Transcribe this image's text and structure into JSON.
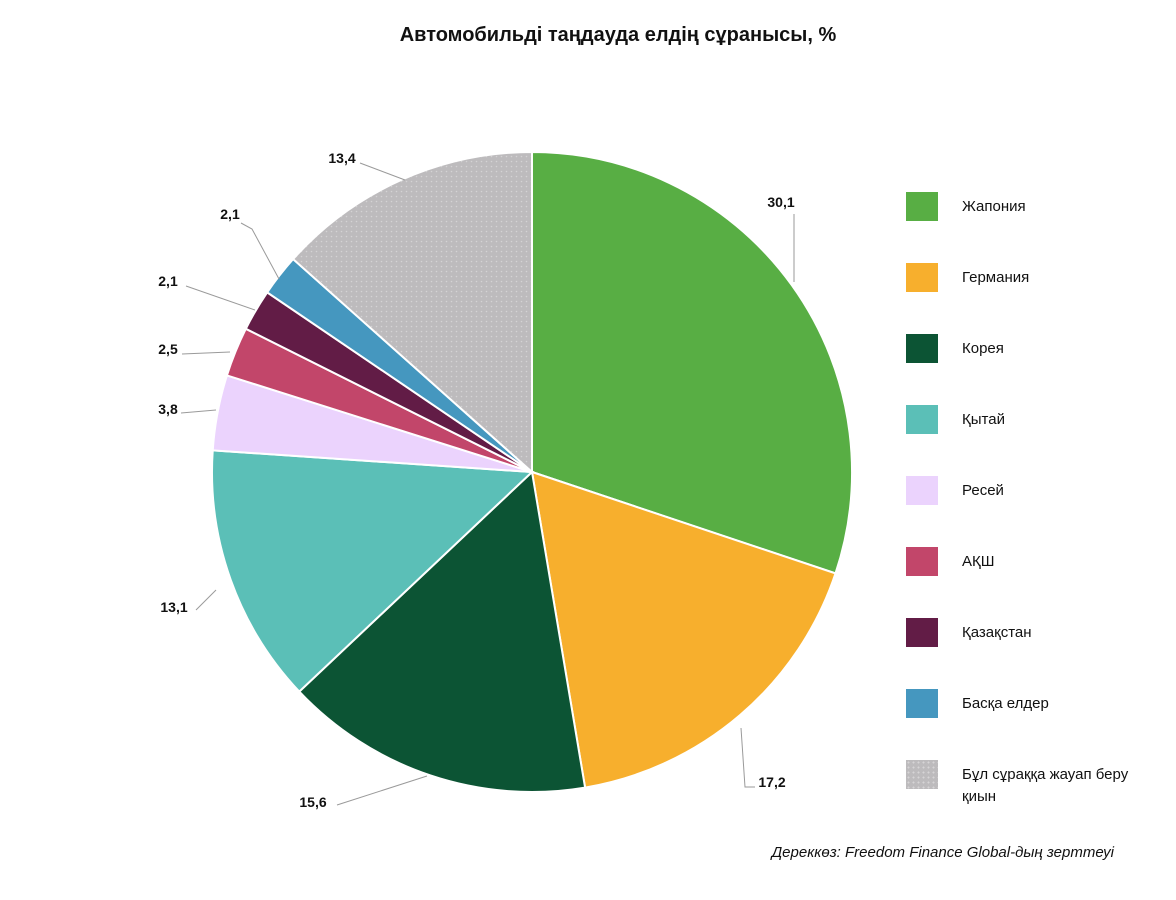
{
  "chart_data": {
    "type": "pie",
    "title": "Автомобильді таңдауда елдің сұранысы, %",
    "categories": [
      "Жапония",
      "Германия",
      "Корея",
      "Қытай",
      "Ресей",
      "АҚШ",
      "Қазақстан",
      "Басқа елдер",
      "Бұл сұраққа жауап беру қиын"
    ],
    "values": [
      30.1,
      17.2,
      15.6,
      13.1,
      3.8,
      2.5,
      2.1,
      2.1,
      13.4
    ],
    "value_labels": [
      "30,1",
      "17,2",
      "15,6",
      "13,1",
      "3,8",
      "2,5",
      "2,1",
      "2,1",
      "13,4"
    ],
    "colors": [
      "#58AE44",
      "#F7AF2D",
      "#0C5434",
      "#5BBFB7",
      "#EBD3FD",
      "#C2466A",
      "#621C46",
      "#4597BF",
      "#BDBBBD"
    ],
    "legend_position": "right",
    "start_angle": "12 o'clock, clockwise"
  },
  "source_note": "Дереккөз: Freedom Finance Global-дың зерттеуі"
}
